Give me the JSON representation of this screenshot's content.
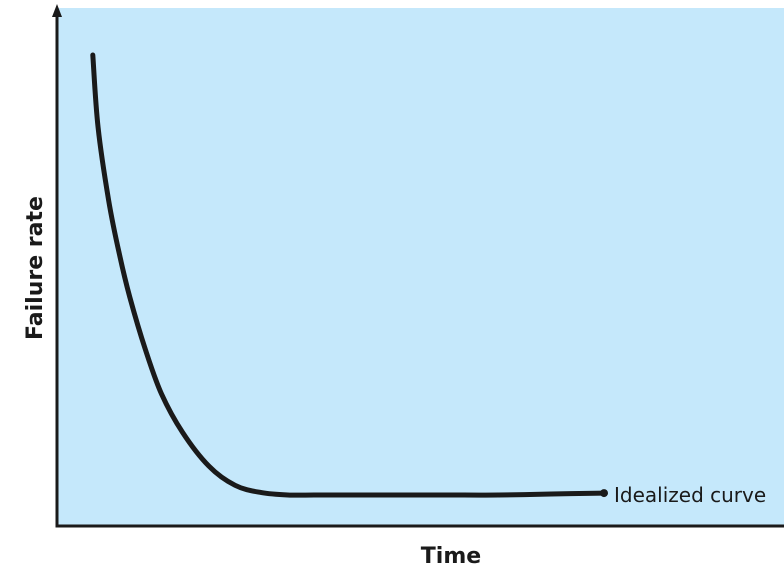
{
  "chart_data": {
    "type": "line",
    "title": "",
    "xlabel": "Time",
    "ylabel": "Failure rate",
    "xlim": [
      0,
      100
    ],
    "ylim": [
      0,
      100
    ],
    "grid": false,
    "legend": "none",
    "colors": {
      "plot_background": "#c5e8fb",
      "curve": "#1a1a1a",
      "axis": "#1a1a1a"
    },
    "series": [
      {
        "name": "Idealized curve",
        "x": [
          3,
          4,
          6,
          8,
          10,
          13,
          16,
          20,
          25,
          30,
          35,
          40,
          45,
          50,
          60,
          70,
          80,
          90,
          100
        ],
        "y": [
          91,
          76,
          61,
          50,
          41,
          30,
          21,
          13,
          6,
          2,
          0.5,
          0,
          0,
          0,
          0,
          0,
          0,
          0.2,
          0.4
        ]
      }
    ]
  }
}
